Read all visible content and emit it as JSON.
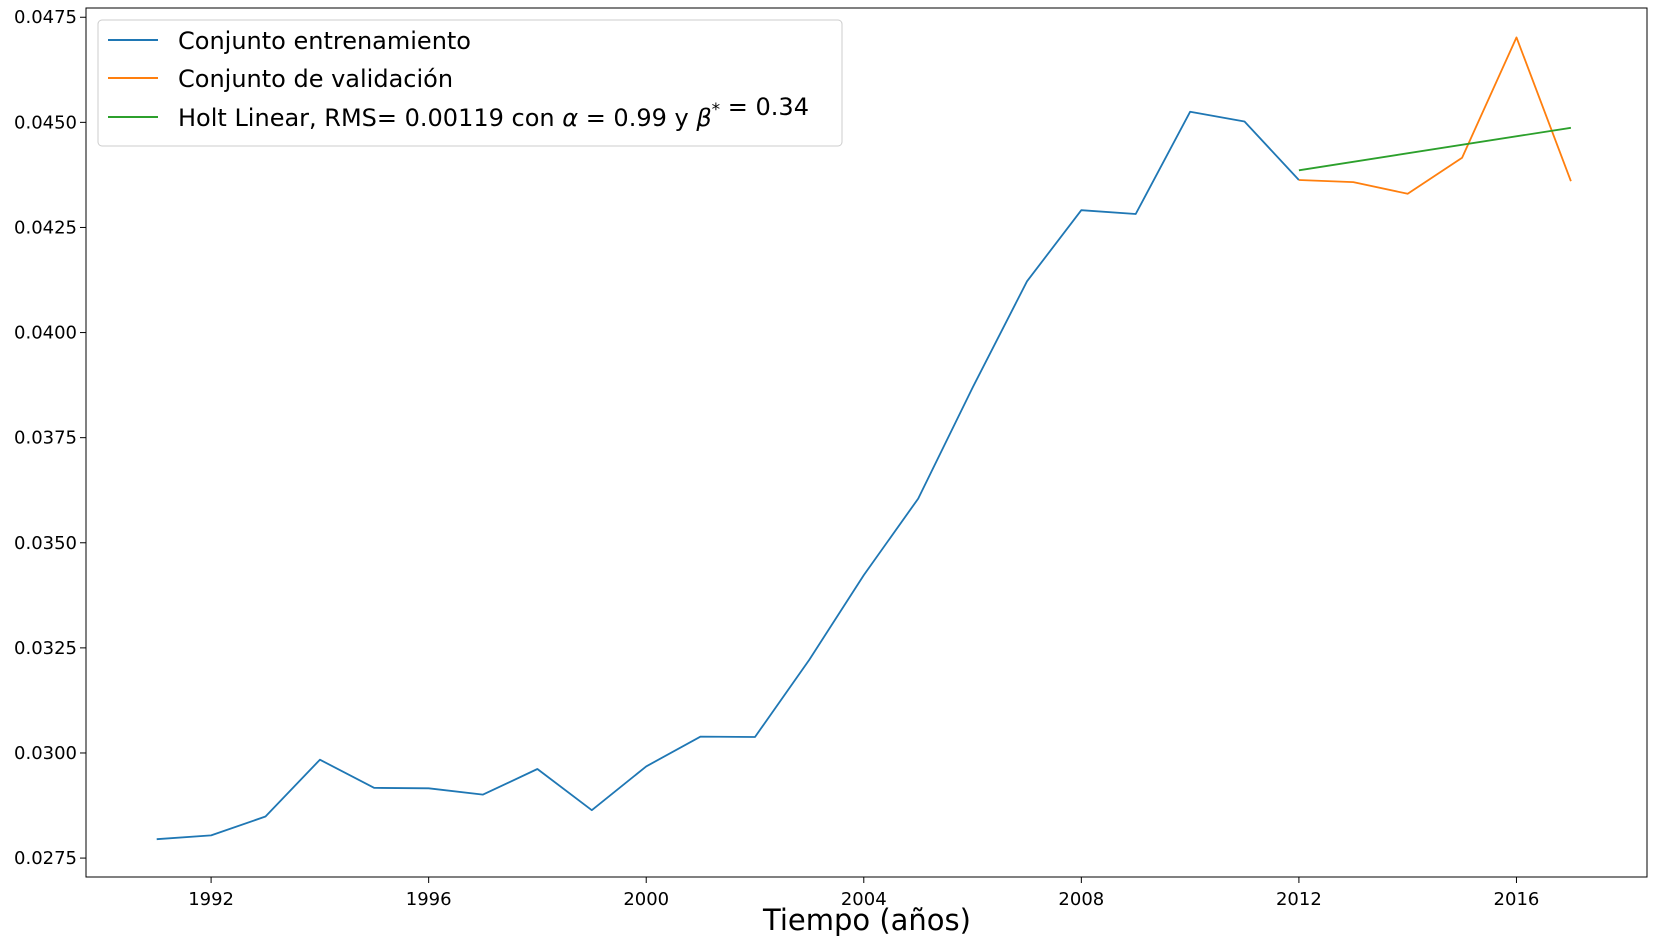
{
  "chart_data": {
    "type": "line",
    "title": "",
    "xlabel": "Tiempo (años)",
    "ylabel": "",
    "xlim": [
      1989.7,
      2018.4
    ],
    "ylim": [
      0.02705,
      0.04772
    ],
    "x_ticks": [
      1992,
      1996,
      2000,
      2004,
      2008,
      2012,
      2016
    ],
    "y_ticks": [
      0.0275,
      0.03,
      0.0325,
      0.035,
      0.0375,
      0.04,
      0.0425,
      0.045,
      0.0475
    ],
    "y_tick_labels": [
      "0.0275",
      "0.0300",
      "0.0325",
      "0.0350",
      "0.0375",
      "0.0400",
      "0.0425",
      "0.0450",
      "0.0475"
    ],
    "x_tick_labels": [
      "1992",
      "1996",
      "2000",
      "2004",
      "2008",
      "2012",
      "2016"
    ],
    "grid": false,
    "legend_position": "top-left",
    "series": [
      {
        "name": "Conjunto entrenamiento",
        "color": "#1f77b4",
        "x": [
          1991,
          1992,
          1993,
          1994,
          1995,
          1996,
          1997,
          1998,
          1999,
          2000,
          2001,
          2002,
          2003,
          2004,
          2005,
          2006,
          2007,
          2008,
          2009,
          2010,
          2011,
          2012
        ],
        "y": [
          0.02795,
          0.02804,
          0.02849,
          0.02984,
          0.02917,
          0.02916,
          0.02901,
          0.02962,
          0.02864,
          0.02968,
          0.03039,
          0.03038,
          0.03222,
          0.03423,
          0.03605,
          0.03869,
          0.04122,
          0.04291,
          0.04282,
          0.04525,
          0.04502,
          0.04363
        ]
      },
      {
        "name": "Conjunto de validación",
        "color": "#ff7f0e",
        "x": [
          2012,
          2013,
          2014,
          2015,
          2016,
          2017
        ],
        "y": [
          0.04363,
          0.04358,
          0.0433,
          0.04416,
          0.04702,
          0.0436
        ]
      },
      {
        "name": "Holt Linear, RMS= 0.00119 con α = 0.99 y β* = 0.34",
        "legend_prefix": "Holt Linear, RMS= 0.00119 con ",
        "legend_alpha": "α",
        "legend_eq1": " = 0.99 y ",
        "legend_beta": "β",
        "legend_star": "*",
        "legend_eq2": " = 0.34",
        "color": "#2ca02c",
        "x": [
          2012,
          2017
        ],
        "y": [
          0.04386,
          0.04487
        ]
      }
    ]
  }
}
